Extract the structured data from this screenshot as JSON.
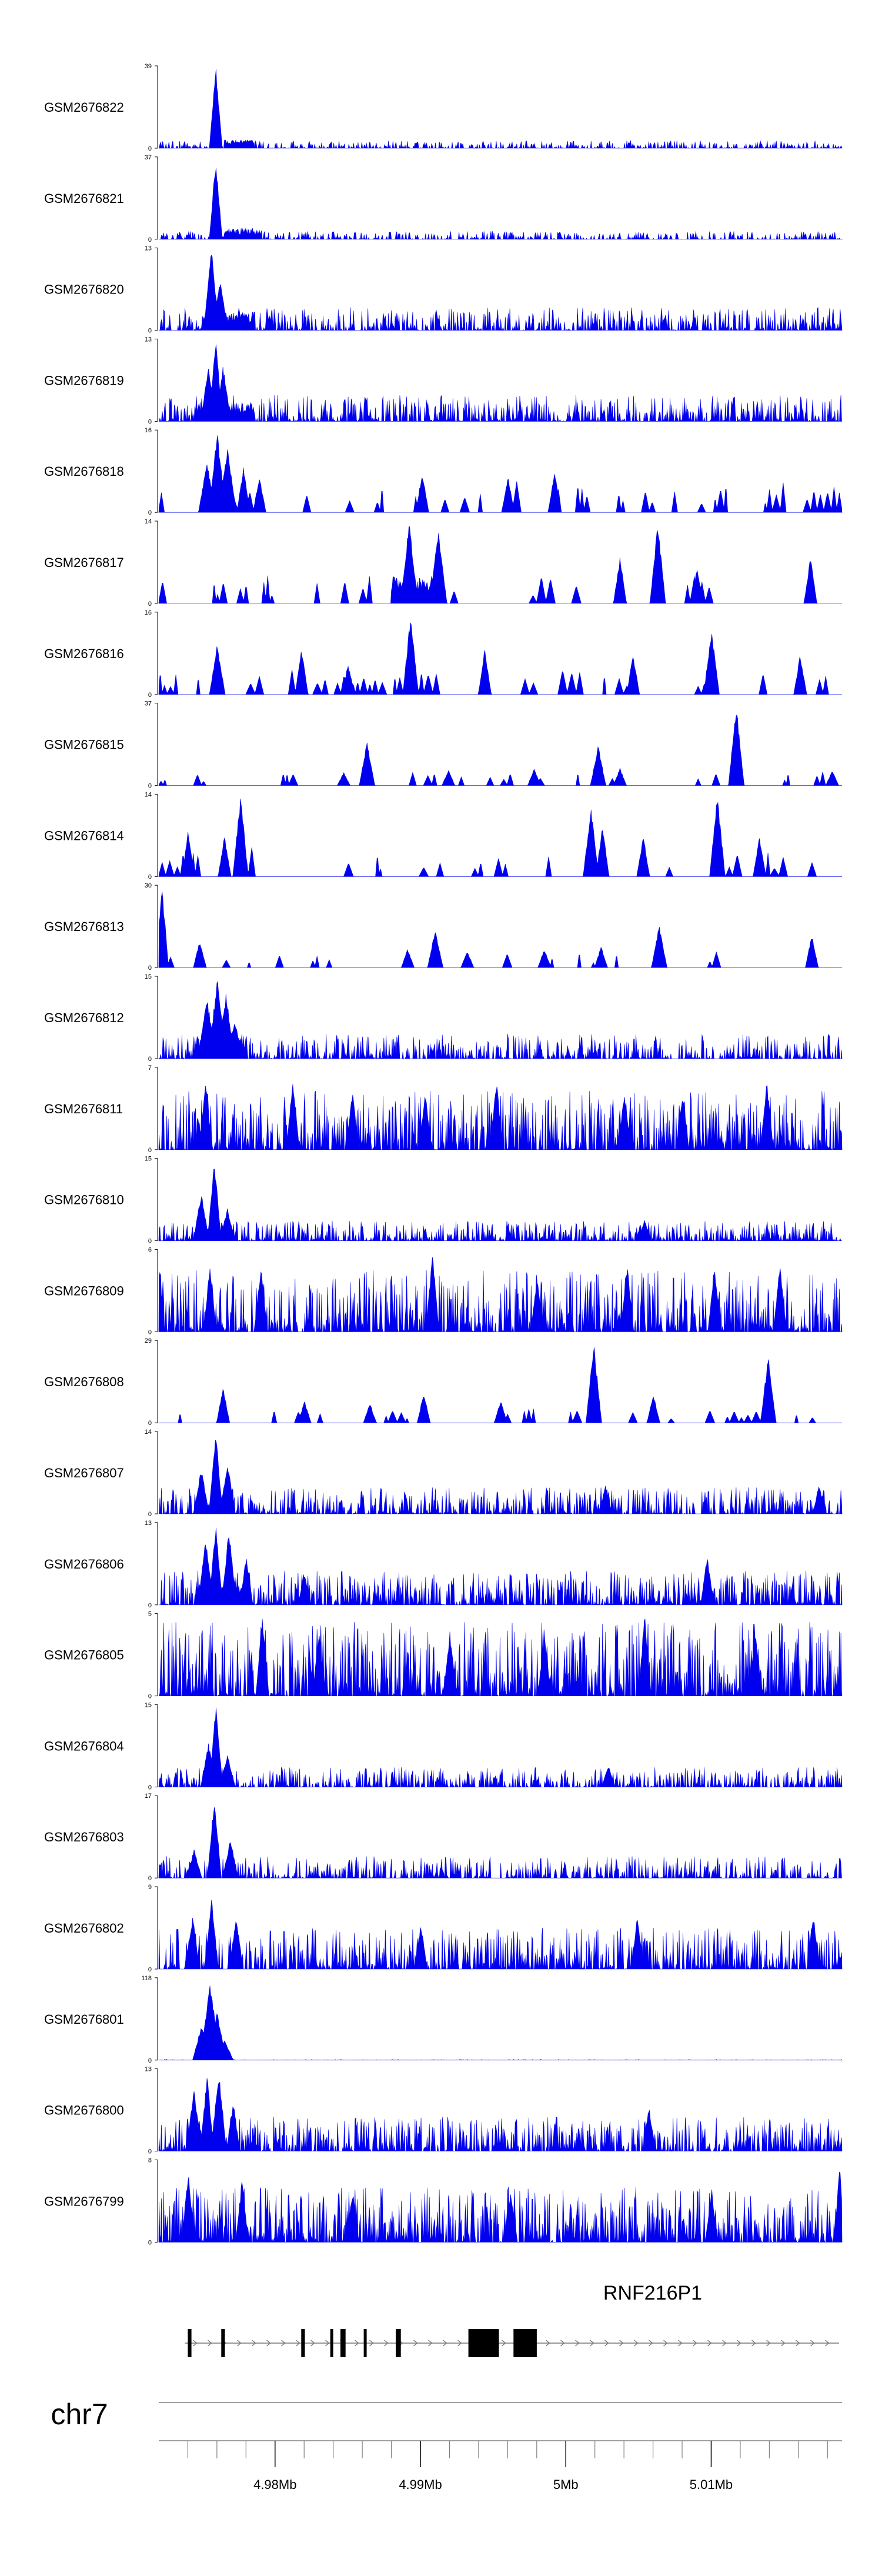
{
  "colors": {
    "signal": "#0000ee",
    "axis": "#000000",
    "gene": "#000000",
    "chrom_line": "#808080"
  },
  "chart_data": {
    "type": "area",
    "title": "",
    "genome": {
      "chromosome": "chr7",
      "xlim": [
        4972000,
        5019000
      ],
      "ticks": [
        {
          "pos": 4980000,
          "label": "4.98Mb"
        },
        {
          "pos": 4990000,
          "label": "4.99Mb"
        },
        {
          "pos": 5000000,
          "label": "5Mb"
        },
        {
          "pos": 5010000,
          "label": "5.01Mb"
        }
      ]
    },
    "gene": {
      "name": "RNF216P1",
      "strand": "+",
      "start": 4973800,
      "end": 5018800,
      "exons": [
        [
          4974000,
          4974250
        ],
        [
          4976300,
          4976550
        ],
        [
          4981800,
          4982050
        ],
        [
          4983800,
          4984000
        ],
        [
          4984500,
          4984850
        ],
        [
          4986100,
          4986300
        ],
        [
          4988300,
          4988650
        ],
        [
          4993300,
          4995400
        ],
        [
          4996400,
          4998000
        ]
      ]
    },
    "tracks": [
      {
        "name": "GSM2676822",
        "ymax": 39,
        "ymin": 0,
        "mode": "fine",
        "base": 2,
        "density": 0.6,
        "peaks": [
          [
            4975900,
            39,
            150
          ]
        ],
        "wide": [
          [
            4976500,
            4978500,
            4
          ]
        ]
      },
      {
        "name": "GSM2676821",
        "ymax": 37,
        "ymin": 0,
        "mode": "fine",
        "base": 2,
        "density": 0.55,
        "peaks": [
          [
            4975900,
            37,
            150
          ]
        ],
        "wide": [
          [
            4976500,
            4979000,
            5
          ]
        ]
      },
      {
        "name": "GSM2676820",
        "ymax": 13,
        "ymin": 0,
        "mode": "fine",
        "base": 2,
        "density": 0.65,
        "peaks": [
          [
            4975600,
            13,
            180
          ],
          [
            4976200,
            8,
            180
          ]
        ],
        "wide": [
          [
            4975000,
            4978500,
            3
          ]
        ]
      },
      {
        "name": "GSM2676819",
        "ymax": 13,
        "ymin": 0,
        "mode": "fine",
        "base": 2.3,
        "density": 0.65,
        "peaks": [
          [
            4975400,
            9,
            180
          ],
          [
            4975900,
            13,
            160
          ],
          [
            4976400,
            9,
            180
          ]
        ],
        "wide": [
          [
            4974500,
            4978500,
            3
          ]
        ]
      },
      {
        "name": "GSM2676818",
        "ymax": 16,
        "ymin": 0,
        "mode": "coarse",
        "base": 5,
        "density": 0.55,
        "peaks": [
          [
            4976000,
            16,
            200
          ],
          [
            4976700,
            13,
            200
          ],
          [
            4975300,
            10,
            200
          ],
          [
            4977800,
            9,
            150
          ],
          [
            4978900,
            7,
            150
          ],
          [
            4990100,
            8,
            150
          ],
          [
            4996000,
            7,
            150
          ],
          [
            4999200,
            8,
            150
          ]
        ],
        "wide": []
      },
      {
        "name": "GSM2676817",
        "ymax": 14,
        "ymin": 0,
        "mode": "coarse",
        "base": 4,
        "density": 0.5,
        "peaks": [
          [
            4989200,
            14,
            200
          ],
          [
            4991200,
            13,
            200
          ],
          [
            5006300,
            14,
            180
          ],
          [
            5003700,
            8,
            150
          ],
          [
            5016800,
            8,
            150
          ],
          [
            5009000,
            6,
            150
          ]
        ],
        "wide": [
          [
            4988000,
            4991000,
            5
          ]
        ]
      },
      {
        "name": "GSM2676816",
        "ymax": 16,
        "ymin": 0,
        "mode": "coarse",
        "base": 4,
        "density": 0.55,
        "peaks": [
          [
            4989300,
            16,
            180
          ],
          [
            5010000,
            13,
            180
          ],
          [
            4976000,
            10,
            180
          ],
          [
            4981800,
            9,
            150
          ],
          [
            4994400,
            9,
            150
          ],
          [
            5004600,
            8,
            150
          ],
          [
            5016100,
            8,
            150
          ],
          [
            4985000,
            6,
            150
          ]
        ],
        "wide": []
      },
      {
        "name": "GSM2676815",
        "ymax": 37,
        "ymin": 0,
        "mode": "coarse",
        "base": 5,
        "density": 0.35,
        "peaks": [
          [
            5011700,
            37,
            180
          ],
          [
            4986300,
            20,
            180
          ],
          [
            5002200,
            18,
            180
          ],
          [
            5003700,
            8,
            150
          ],
          [
            4991900,
            7,
            150
          ],
          [
            4997800,
            8,
            150
          ],
          [
            5018300,
            7,
            150
          ],
          [
            4984700,
            6,
            150
          ]
        ],
        "wide": []
      },
      {
        "name": "GSM2676814",
        "ymax": 14,
        "ymin": 0,
        "mode": "coarse",
        "base": 4,
        "density": 0.5,
        "peaks": [
          [
            4977600,
            14,
            180
          ],
          [
            5010400,
            14,
            180
          ],
          [
            5001700,
            12,
            180
          ],
          [
            5002500,
            9,
            150
          ],
          [
            4974000,
            8,
            150
          ],
          [
            4976500,
            7,
            150
          ],
          [
            5013300,
            7,
            150
          ],
          [
            5005300,
            7,
            150
          ]
        ],
        "wide": []
      },
      {
        "name": "GSM2676813",
        "ymax": 30,
        "ymin": 0,
        "mode": "coarse",
        "base": 5,
        "density": 0.45,
        "peaks": [
          [
            4972200,
            30,
            150
          ],
          [
            5006400,
            16,
            180
          ],
          [
            4991000,
            14,
            180
          ],
          [
            5016900,
            12,
            150
          ],
          [
            4974800,
            10,
            150
          ],
          [
            4989100,
            7,
            150
          ],
          [
            4998500,
            7,
            150
          ],
          [
            5002400,
            8,
            150
          ],
          [
            4993200,
            6,
            150
          ]
        ],
        "wide": []
      },
      {
        "name": "GSM2676812",
        "ymax": 15,
        "ymin": 0,
        "mode": "fine",
        "base": 2.5,
        "density": 0.6,
        "peaks": [
          [
            4975300,
            11,
            220
          ],
          [
            4976000,
            15,
            200
          ],
          [
            4976600,
            12,
            200
          ],
          [
            4977200,
            7,
            200
          ]
        ],
        "wide": [
          [
            4974500,
            4978000,
            4
          ]
        ]
      },
      {
        "name": "GSM2676811",
        "ymax": 7,
        "ymin": 0,
        "mode": "fine",
        "base": 2.8,
        "density": 0.7,
        "peaks": [
          [
            4975200,
            6,
            150
          ],
          [
            4981200,
            6,
            150
          ],
          [
            4985300,
            5,
            150
          ],
          [
            4995200,
            6,
            150
          ],
          [
            5004000,
            5,
            150
          ],
          [
            5013800,
            6,
            150
          ],
          [
            4990300,
            5,
            150
          ],
          [
            5008000,
            5,
            150
          ]
        ],
        "wide": []
      },
      {
        "name": "GSM2676810",
        "ymax": 15,
        "ymin": 0,
        "mode": "fine",
        "base": 2,
        "density": 0.65,
        "peaks": [
          [
            4974900,
            9,
            180
          ],
          [
            4975800,
            15,
            160
          ],
          [
            4976700,
            6,
            180
          ],
          [
            5005400,
            4,
            150
          ]
        ],
        "wide": []
      },
      {
        "name": "GSM2676809",
        "ymax": 6,
        "ymin": 0,
        "mode": "fine",
        "base": 2.5,
        "density": 0.7,
        "peaks": [
          [
            4975500,
            5,
            150
          ],
          [
            4979000,
            5,
            150
          ],
          [
            4990800,
            6,
            150
          ],
          [
            5004200,
            5,
            150
          ],
          [
            5010200,
            5,
            150
          ],
          [
            5014700,
            5,
            150
          ],
          [
            4998000,
            4,
            150
          ]
        ],
        "wide": []
      },
      {
        "name": "GSM2676808",
        "ymax": 29,
        "ymin": 0,
        "mode": "coarse",
        "base": 4,
        "density": 0.5,
        "peaks": [
          [
            5001900,
            29,
            180
          ],
          [
            5013900,
            24,
            180
          ],
          [
            4976400,
            13,
            150
          ],
          [
            4990200,
            11,
            150
          ],
          [
            5006000,
            10,
            150
          ],
          [
            4982000,
            8,
            150
          ],
          [
            4995500,
            8,
            150
          ],
          [
            4986500,
            7,
            150
          ]
        ],
        "wide": []
      },
      {
        "name": "GSM2676807",
        "ymax": 14,
        "ymin": 0,
        "mode": "fine",
        "base": 2.5,
        "density": 0.65,
        "peaks": [
          [
            4974900,
            8,
            180
          ],
          [
            4975900,
            14,
            160
          ],
          [
            4976700,
            9,
            180
          ],
          [
            5017400,
            5,
            150
          ],
          [
            5002700,
            5,
            150
          ]
        ],
        "wide": []
      },
      {
        "name": "GSM2676806",
        "ymax": 13,
        "ymin": 0,
        "mode": "fine",
        "base": 3,
        "density": 0.7,
        "peaks": [
          [
            4975200,
            11,
            180
          ],
          [
            4975900,
            13,
            160
          ],
          [
            4976800,
            12,
            180
          ],
          [
            4978000,
            8,
            150
          ],
          [
            5009700,
            8,
            150
          ],
          [
            4982000,
            5,
            150
          ]
        ],
        "wide": [
          [
            4974500,
            4978000,
            3
          ]
        ]
      },
      {
        "name": "GSM2676805",
        "ymax": 5,
        "ymin": 0,
        "mode": "fine",
        "base": 2.5,
        "density": 0.75,
        "peaks": [
          [
            4979100,
            5,
            150
          ],
          [
            5005400,
            5,
            150
          ],
          [
            4983000,
            4,
            150
          ],
          [
            4992000,
            4,
            150
          ],
          [
            5013000,
            4,
            150
          ],
          [
            4998500,
            4,
            150
          ]
        ],
        "wide": []
      },
      {
        "name": "GSM2676804",
        "ymax": 15,
        "ymin": 0,
        "mode": "fine",
        "base": 2,
        "density": 0.6,
        "peaks": [
          [
            4975400,
            8,
            180
          ],
          [
            4975900,
            15,
            160
          ],
          [
            4976700,
            6,
            180
          ],
          [
            5002900,
            4,
            150
          ]
        ],
        "wide": []
      },
      {
        "name": "GSM2676803",
        "ymax": 17,
        "ymin": 0,
        "mode": "fine",
        "base": 2.5,
        "density": 0.6,
        "peaks": [
          [
            4974400,
            6,
            180
          ],
          [
            4975800,
            17,
            160
          ],
          [
            4976900,
            8,
            180
          ]
        ],
        "wide": []
      },
      {
        "name": "GSM2676802",
        "ymax": 9,
        "ymin": 0,
        "mode": "fine",
        "base": 2.5,
        "density": 0.7,
        "peaks": [
          [
            4975600,
            8,
            160
          ],
          [
            4974300,
            6,
            160
          ],
          [
            4977300,
            6,
            160
          ],
          [
            5004900,
            6,
            150
          ],
          [
            5017000,
            6,
            150
          ],
          [
            4990000,
            5,
            150
          ]
        ],
        "wide": []
      },
      {
        "name": "GSM2676801",
        "ymax": 118,
        "ymin": 0,
        "mode": "fine",
        "base": 0.5,
        "density": 0.25,
        "peaks": [
          [
            4974900,
            50,
            200
          ],
          [
            4975500,
            118,
            220
          ],
          [
            4976000,
            70,
            200
          ],
          [
            4976500,
            30,
            200
          ]
        ],
        "wide": []
      },
      {
        "name": "GSM2676800",
        "ymax": 13,
        "ymin": 0,
        "mode": "fine",
        "base": 3,
        "density": 0.7,
        "peaks": [
          [
            4974400,
            10,
            180
          ],
          [
            4975300,
            12,
            160
          ],
          [
            4976100,
            13,
            180
          ],
          [
            4977100,
            8,
            150
          ],
          [
            5005700,
            7,
            150
          ]
        ],
        "wide": []
      },
      {
        "name": "GSM2676799",
        "ymax": 8,
        "ymin": 0,
        "mode": "fine",
        "base": 3,
        "density": 0.75,
        "peaks": [
          [
            5018800,
            8,
            120
          ],
          [
            4974000,
            7,
            150
          ],
          [
            4977700,
            6,
            150
          ],
          [
            4985300,
            5,
            150
          ],
          [
            5010000,
            5,
            150
          ],
          [
            4996200,
            5,
            150
          ]
        ],
        "wide": []
      }
    ]
  }
}
